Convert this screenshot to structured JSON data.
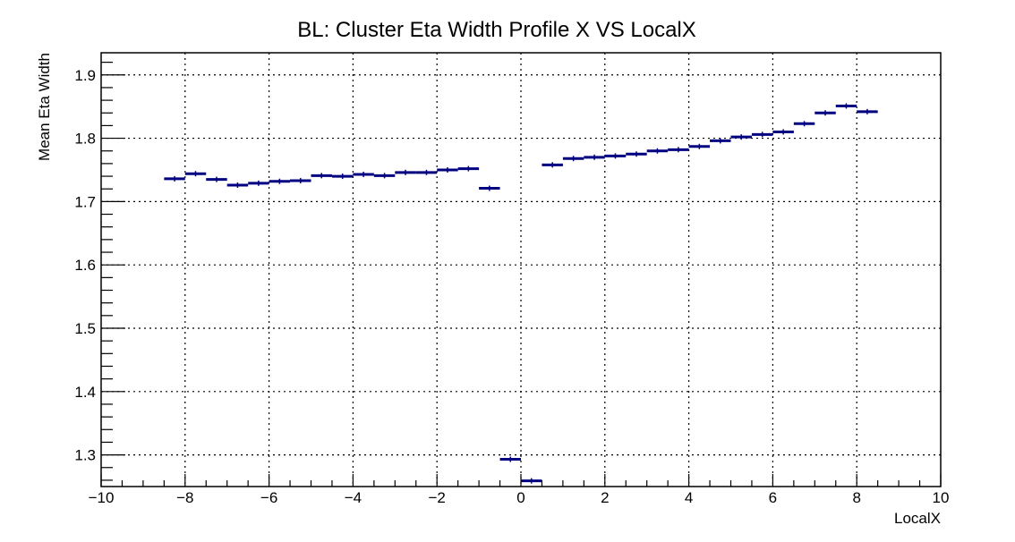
{
  "chart_data": {
    "type": "scatter",
    "title": "BL: Cluster Eta Width Profile X VS LocalX",
    "xlabel": "LocalX",
    "ylabel": "Mean Eta Width",
    "xlim": [
      -10,
      10
    ],
    "ylim": [
      1.25,
      1.935
    ],
    "grid": true,
    "legend": "none",
    "marker_color": "#000080",
    "x_ticks": [
      "−10",
      "−8",
      "−6",
      "−4",
      "−2",
      "0",
      "2",
      "4",
      "6",
      "8",
      "10"
    ],
    "y_ticks": [
      "1.3",
      "1.4",
      "1.5",
      "1.6",
      "1.7",
      "1.8",
      "1.9"
    ],
    "bin_width": 0.5,
    "series": [
      {
        "x": [
          -8.25,
          -7.75,
          -7.25,
          -6.75,
          -6.25,
          -5.75,
          -5.25,
          -4.75,
          -4.25,
          -3.75,
          -3.25,
          -2.75,
          -2.25,
          -1.75,
          -1.25,
          -0.75,
          -0.25,
          0.25,
          0.75,
          1.25,
          1.75,
          2.25,
          2.75,
          3.25,
          3.75,
          4.25,
          4.75,
          5.25,
          5.75,
          6.25,
          6.75,
          7.25,
          7.75,
          8.25
        ],
        "y": [
          1.736,
          1.744,
          1.735,
          1.726,
          1.729,
          1.732,
          1.733,
          1.741,
          1.74,
          1.743,
          1.741,
          1.746,
          1.746,
          1.75,
          1.752,
          1.721,
          1.293,
          1.259,
          1.758,
          1.768,
          1.77,
          1.772,
          1.775,
          1.78,
          1.782,
          1.787,
          1.796,
          1.802,
          1.806,
          1.81,
          1.823,
          1.84,
          1.851,
          1.842
        ]
      }
    ]
  }
}
